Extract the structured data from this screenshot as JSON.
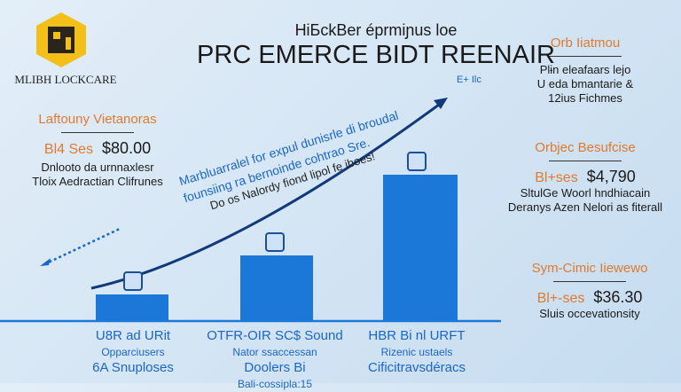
{
  "brand": {
    "name": "MLIBH LOCKCARE",
    "logo_icon": "hexagon-cube-logo",
    "logo_color": "#f5bf1a"
  },
  "header": {
    "subtitle": "HiБckBer éprmiɲus loe",
    "title": "PRC EMERCE BIDT REENAIR"
  },
  "left_panel": {
    "heading": "Laftouny Vietanoras",
    "price_label": "Bl4 Ses",
    "price": "$80.00",
    "lines": [
      "Dnlooto da urnnaxlesr",
      "Tloix Aedractian Clifrunes"
    ]
  },
  "right_panels": [
    {
      "heading": "Orb Ііatmou",
      "lines": [
        "Plɨn eleafaars lejo",
        "U eda bmantarie &",
        "12ius Fichmes"
      ]
    },
    {
      "heading": "Orbjec Besufcise",
      "price_label": "Bl+ses",
      "price": "$4,790",
      "lines": [
        "SltulGe Woorl hndhiacain",
        "Deranys Azen Nelori as fiterall"
      ]
    },
    {
      "heading": "Sym-Cimic Ііеwewo",
      "price_label": "Bl+-ses",
      "price": "$36.30",
      "lines": [
        "Sluis occevationsity"
      ]
    }
  ],
  "annotation": {
    "lines": [
      "Marbluarralel for expul dunisrle di broudal",
      "founsiing ra bernoinde cohtrao Sre.",
      "Do os Nalordy fiond lipol fe iboes!"
    ],
    "arrow_label": "E+ Ilc"
  },
  "bars": [
    {
      "relative_value": 0.18,
      "icon": "machine-icon",
      "title": "U8R ad URit",
      "lines": [
        "Opparciusers",
        "6A Snuploses"
      ]
    },
    {
      "relative_value": 0.45,
      "icon": "device-icon",
      "title": "OTFR-OIR SC$ Sound",
      "lines": [
        "Nator ssaccessan",
        "Doolers Bi",
        "Bali-cossipla:15"
      ]
    },
    {
      "relative_value": 1.0,
      "icon": "robot-icon",
      "title": "HBR Bi nl URFT",
      "lines": [
        "Rizenic ustaels",
        "Cificitravsdéracs"
      ]
    }
  ],
  "colors": {
    "accent_orange": "#e07a2e",
    "bar_blue": "#1c78d8",
    "curve_navy": "#123a7a"
  }
}
